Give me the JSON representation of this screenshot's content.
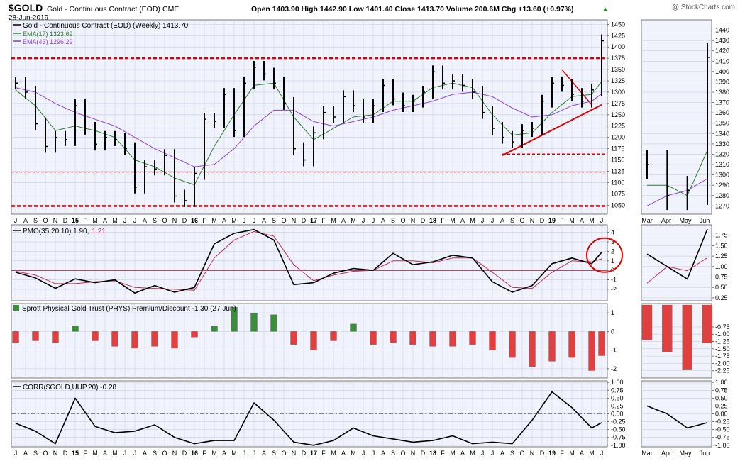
{
  "header": {
    "symbol": "$GOLD",
    "name": "Gold - Continuous Contract (EOD)",
    "exchange": "CME",
    "date": "28-Jun-2019",
    "quote": "Open 1403.90   High 1442.90   Low 1401.40   Close 1413.70   Volume 200.6M   Chg +13.60 (+0.97%)",
    "quote_arrow": "▲",
    "watermark": "@ StockCharts.com"
  },
  "colors": {
    "price": "#000000",
    "ema17": "#2e7d32",
    "ema43": "#8b3fd9",
    "resistance": "#e00000",
    "pmo_signal": "#c0285a",
    "premium_up": "#3c8c3c",
    "premium_down": "#e04040",
    "panel_bg": "#f0f3fc",
    "grid": "#c8cde0"
  },
  "chart_data": [
    {
      "panel": "price",
      "type": "line",
      "title": "Gold - Continuous Contract (EOD) (Weekly) 1413.70",
      "legend": [
        {
          "label": "Gold - Continuous Contract (EOD) (Weekly) 1413.70",
          "color": "#000000"
        },
        {
          "label": "EMA(17) 1323.69",
          "color": "#2e7d32"
        },
        {
          "label": "EMA(43) 1296.29",
          "color": "#8b3fd9"
        }
      ],
      "ylim": [
        1030,
        1460
      ],
      "yticks": [
        1050,
        1075,
        1100,
        1125,
        1150,
        1175,
        1200,
        1225,
        1250,
        1275,
        1300,
        1325,
        1350,
        1375,
        1400,
        1425,
        1450
      ],
      "x_month_labels": [
        "J",
        "A",
        "S",
        "O",
        "N",
        "D",
        "15",
        "F",
        "M",
        "A",
        "M",
        "J",
        "J",
        "A",
        "S",
        "O",
        "N",
        "D",
        "16",
        "F",
        "M",
        "A",
        "M",
        "J",
        "J",
        "A",
        "S",
        "O",
        "N",
        "D",
        "17",
        "F",
        "M",
        "A",
        "M",
        "J",
        "J",
        "A",
        "S",
        "O",
        "N",
        "D",
        "18",
        "F",
        "M",
        "A",
        "M",
        "J",
        "J",
        "A",
        "S",
        "O",
        "N",
        "D",
        "19",
        "F",
        "M",
        "A",
        "M",
        "J"
      ],
      "x_start": "2014-07",
      "x_end": "2019-06",
      "series": [
        {
          "name": "Gold - Continuous Contract (EOD) (Weekly)",
          "kind": "close",
          "x": [
            "2014-07",
            "2014-08",
            "2014-09",
            "2014-10",
            "2014-11",
            "2014-12",
            "2015-01",
            "2015-02",
            "2015-03",
            "2015-04",
            "2015-05",
            "2015-06",
            "2015-07",
            "2015-08",
            "2015-09",
            "2015-10",
            "2015-11",
            "2015-12",
            "2016-01",
            "2016-02",
            "2016-03",
            "2016-04",
            "2016-05",
            "2016-06",
            "2016-07",
            "2016-08",
            "2016-09",
            "2016-10",
            "2016-11",
            "2016-12",
            "2017-01",
            "2017-02",
            "2017-03",
            "2017-04",
            "2017-05",
            "2017-06",
            "2017-07",
            "2017-08",
            "2017-09",
            "2017-10",
            "2017-11",
            "2017-12",
            "2018-01",
            "2018-02",
            "2018-03",
            "2018-04",
            "2018-05",
            "2018-06",
            "2018-07",
            "2018-08",
            "2018-09",
            "2018-10",
            "2018-11",
            "2018-12",
            "2019-01",
            "2019-02",
            "2019-03",
            "2019-04",
            "2019-05",
            "2019-06"
          ],
          "values": [
            1320,
            1300,
            1230,
            1180,
            1200,
            1195,
            1270,
            1220,
            1185,
            1200,
            1195,
            1175,
            1090,
            1135,
            1130,
            1160,
            1070,
            1060,
            1120,
            1240,
            1235,
            1295,
            1215,
            1320,
            1355,
            1340,
            1320,
            1275,
            1175,
            1150,
            1210,
            1255,
            1245,
            1290,
            1270,
            1245,
            1270,
            1315,
            1285,
            1270,
            1280,
            1300,
            1345,
            1320,
            1325,
            1315,
            1300,
            1255,
            1220,
            1200,
            1190,
            1215,
            1220,
            1280,
            1320,
            1315,
            1295,
            1280,
            1305,
            1413.7
          ]
        },
        {
          "name": "EMA(17)",
          "kind": "line",
          "x": [
            "2014-07",
            "2014-09",
            "2014-11",
            "2015-01",
            "2015-03",
            "2015-05",
            "2015-07",
            "2015-09",
            "2015-11",
            "2016-01",
            "2016-03",
            "2016-05",
            "2016-07",
            "2016-09",
            "2016-11",
            "2017-01",
            "2017-03",
            "2017-05",
            "2017-07",
            "2017-09",
            "2017-11",
            "2018-01",
            "2018-03",
            "2018-05",
            "2018-07",
            "2018-09",
            "2018-11",
            "2019-01",
            "2019-03",
            "2019-05",
            "2019-06"
          ],
          "values": [
            1305,
            1270,
            1215,
            1225,
            1215,
            1200,
            1150,
            1135,
            1110,
            1095,
            1180,
            1250,
            1315,
            1320,
            1245,
            1195,
            1220,
            1245,
            1250,
            1280,
            1280,
            1310,
            1320,
            1310,
            1250,
            1205,
            1210,
            1255,
            1290,
            1295,
            1323.69
          ]
        },
        {
          "name": "EMA(43)",
          "kind": "line",
          "x": [
            "2014-07",
            "2014-09",
            "2014-11",
            "2015-01",
            "2015-03",
            "2015-05",
            "2015-07",
            "2015-09",
            "2015-11",
            "2016-01",
            "2016-03",
            "2016-05",
            "2016-07",
            "2016-09",
            "2016-11",
            "2017-01",
            "2017-03",
            "2017-05",
            "2017-07",
            "2017-09",
            "2017-11",
            "2018-01",
            "2018-03",
            "2018-05",
            "2018-07",
            "2018-09",
            "2018-11",
            "2019-01",
            "2019-03",
            "2019-05",
            "2019-06"
          ],
          "values": [
            1310,
            1300,
            1275,
            1255,
            1240,
            1225,
            1200,
            1175,
            1155,
            1135,
            1140,
            1175,
            1225,
            1260,
            1260,
            1235,
            1225,
            1235,
            1245,
            1260,
            1270,
            1280,
            1295,
            1300,
            1290,
            1265,
            1245,
            1250,
            1270,
            1280,
            1296.29
          ]
        }
      ],
      "annotations": {
        "resistance_levels": [
          1375,
          1123,
          1048
        ],
        "support_level_2018": 1163,
        "rising_trendline": [
          [
            "2018-08",
            1160
          ],
          [
            "2019-06",
            1272
          ]
        ],
        "pennant_top": [
          [
            "2019-02",
            1350
          ],
          [
            "2019-05",
            1272
          ]
        ]
      }
    },
    {
      "panel": "price-detail",
      "type": "line",
      "ylim": [
        1262,
        1450
      ],
      "yticks": [
        1270,
        1280,
        1290,
        1300,
        1310,
        1320,
        1330,
        1340,
        1350,
        1360,
        1370,
        1380,
        1390,
        1400,
        1410,
        1420,
        1430,
        1440
      ],
      "x_month_labels": [
        "Mar",
        "Apr",
        "May",
        "Jun"
      ],
      "series": [
        {
          "name": "Gold - Continuous Contract (EOD)",
          "kind": "close",
          "x": [
            "2019-03",
            "2019-04",
            "2019-05",
            "2019-06"
          ],
          "values": [
            1310,
            1280,
            1285,
            1413.7
          ]
        },
        {
          "name": "EMA(17)",
          "kind": "line",
          "x": [
            "2019-03",
            "2019-04",
            "2019-05",
            "2019-06"
          ],
          "values": [
            1290,
            1290,
            1280,
            1323.69
          ]
        },
        {
          "name": "EMA(43)",
          "kind": "line",
          "x": [
            "2019-03",
            "2019-04",
            "2019-05",
            "2019-06"
          ],
          "values": [
            1270,
            1280,
            1285,
            1296.29
          ]
        }
      ]
    },
    {
      "panel": "pmo",
      "type": "line",
      "title": "PMO(35,20,10) 1.90, 1.21",
      "label_main": "PMO(35,20,10) 1.90,",
      "label_signal": "1.21",
      "ylim": [
        -3.2,
        4.8
      ],
      "yticks": [
        -2,
        -1,
        0,
        1,
        2,
        3,
        4
      ],
      "zero_line": 0,
      "series": [
        {
          "name": "PMO",
          "x": [
            "2014-07",
            "2014-09",
            "2014-11",
            "2015-01",
            "2015-03",
            "2015-05",
            "2015-07",
            "2015-09",
            "2015-11",
            "2016-01",
            "2016-03",
            "2016-05",
            "2016-07",
            "2016-09",
            "2016-11",
            "2017-01",
            "2017-03",
            "2017-05",
            "2017-07",
            "2017-09",
            "2017-11",
            "2018-01",
            "2018-03",
            "2018-05",
            "2018-07",
            "2018-09",
            "2018-11",
            "2019-01",
            "2019-03",
            "2019-05",
            "2019-06"
          ],
          "values": [
            -0.2,
            -0.8,
            -1.9,
            -0.9,
            -1.3,
            -1.0,
            -2.4,
            -1.6,
            -2.3,
            -1.8,
            2.8,
            3.9,
            4.3,
            3.2,
            -1.5,
            -1.3,
            -0.3,
            0.2,
            0.0,
            1.8,
            0.6,
            0.9,
            1.6,
            1.3,
            -1.2,
            -2.3,
            -1.6,
            0.7,
            1.3,
            0.7,
            1.9
          ]
        },
        {
          "name": "Signal",
          "x": [
            "2014-07",
            "2014-09",
            "2014-11",
            "2015-01",
            "2015-03",
            "2015-05",
            "2015-07",
            "2015-09",
            "2015-11",
            "2016-01",
            "2016-03",
            "2016-05",
            "2016-07",
            "2016-09",
            "2016-11",
            "2017-01",
            "2017-03",
            "2017-05",
            "2017-07",
            "2017-09",
            "2017-11",
            "2018-01",
            "2018-03",
            "2018-05",
            "2018-07",
            "2018-09",
            "2018-11",
            "2019-01",
            "2019-03",
            "2019-05",
            "2019-06"
          ],
          "values": [
            -0.1,
            -0.5,
            -1.4,
            -1.4,
            -1.2,
            -1.1,
            -1.8,
            -1.9,
            -2.0,
            -2.1,
            1.3,
            3.2,
            4.1,
            3.6,
            0.6,
            -1.1,
            -0.5,
            -0.1,
            0.0,
            1.0,
            1.0,
            0.8,
            1.3,
            1.3,
            -0.2,
            -1.8,
            -1.9,
            -0.2,
            1.0,
            0.9,
            1.21
          ]
        }
      ]
    },
    {
      "panel": "pmo-detail",
      "type": "line",
      "ylim": [
        0.18,
        2.0
      ],
      "yticks": [
        0.25,
        0.5,
        0.75,
        1.0,
        1.25,
        1.5,
        1.75
      ],
      "series": [
        {
          "name": "PMO",
          "x": [
            "2019-03",
            "2019-04",
            "2019-05",
            "2019-06"
          ],
          "values": [
            1.3,
            1.0,
            0.7,
            1.9
          ]
        },
        {
          "name": "Signal",
          "x": [
            "2019-03",
            "2019-04",
            "2019-05",
            "2019-06"
          ],
          "values": [
            0.6,
            1.0,
            0.9,
            1.21
          ]
        }
      ]
    },
    {
      "panel": "premium",
      "type": "bar",
      "title": "Sprott Physical Gold Trust (PHYS) Premium/Discount -1.30 (27 Jun)",
      "ylim": [
        -2.5,
        1.5
      ],
      "yticks": [
        -2,
        -1,
        0,
        1
      ],
      "x": [
        "2014-07",
        "2014-09",
        "2014-11",
        "2015-01",
        "2015-03",
        "2015-05",
        "2015-07",
        "2015-09",
        "2015-11",
        "2016-01",
        "2016-03",
        "2016-05",
        "2016-07",
        "2016-09",
        "2016-11",
        "2017-01",
        "2017-03",
        "2017-05",
        "2017-07",
        "2017-09",
        "2017-11",
        "2018-01",
        "2018-03",
        "2018-05",
        "2018-07",
        "2018-09",
        "2018-11",
        "2019-01",
        "2019-03",
        "2019-05",
        "2019-06"
      ],
      "values": [
        -0.6,
        -0.5,
        -0.6,
        0.3,
        -0.5,
        -0.8,
        -0.9,
        -0.8,
        -0.9,
        -0.3,
        0.3,
        1.3,
        1.0,
        0.9,
        -0.7,
        -1.0,
        -0.5,
        0.4,
        -0.7,
        -0.6,
        -0.7,
        -0.8,
        -0.8,
        -0.7,
        -1.0,
        -1.4,
        -1.9,
        -1.6,
        -1.4,
        -2.1,
        -1.3
      ]
    },
    {
      "panel": "premium-detail",
      "type": "bar",
      "ylim": [
        -2.5,
        0.05
      ],
      "yticks": [
        -0.75,
        -1.0,
        -1.25,
        -1.5,
        -1.75,
        -2.0,
        -2.25
      ],
      "x": [
        "2019-03",
        "2019-04",
        "2019-05",
        "2019-06"
      ],
      "values": [
        -1.2,
        -1.6,
        -2.2,
        -1.3
      ]
    },
    {
      "panel": "corr",
      "type": "line",
      "title": "CORR($GOLD,UUP,20) -0.28",
      "ylim": [
        -1.05,
        1.05
      ],
      "yticks": [
        -1.0,
        -0.75,
        -0.5,
        -0.25,
        0.0,
        0.25,
        0.5,
        0.75,
        1.0
      ],
      "zero_line": 0,
      "series": [
        {
          "name": "CORR($GOLD,UUP,20)",
          "x": [
            "2014-07",
            "2014-09",
            "2014-11",
            "2015-01",
            "2015-03",
            "2015-05",
            "2015-07",
            "2015-09",
            "2015-11",
            "2016-01",
            "2016-03",
            "2016-05",
            "2016-07",
            "2016-09",
            "2016-11",
            "2017-01",
            "2017-03",
            "2017-05",
            "2017-07",
            "2017-09",
            "2017-11",
            "2018-01",
            "2018-03",
            "2018-05",
            "2018-07",
            "2018-09",
            "2018-11",
            "2019-01",
            "2019-03",
            "2019-05",
            "2019-06"
          ],
          "values": [
            -0.3,
            -0.55,
            -0.95,
            0.5,
            -0.4,
            -0.6,
            -0.55,
            -0.35,
            -0.75,
            -0.95,
            -0.85,
            -0.85,
            0.35,
            -0.2,
            -0.9,
            -1.0,
            -0.85,
            -0.45,
            -0.7,
            -0.8,
            -0.9,
            -0.85,
            -0.7,
            -0.95,
            -0.9,
            -0.95,
            -0.2,
            0.7,
            0.2,
            -0.45,
            -0.28
          ]
        }
      ]
    },
    {
      "panel": "corr-detail",
      "type": "line",
      "ylim": [
        -1.05,
        1.05
      ],
      "yticks": [
        -1.0,
        -0.75,
        -0.5,
        -0.25,
        0.0,
        0.25,
        0.5,
        0.75,
        1.0
      ],
      "series": [
        {
          "name": "CORR($GOLD,UUP,20)",
          "x": [
            "2019-03",
            "2019-04",
            "2019-05",
            "2019-06"
          ],
          "values": [
            0.25,
            0.0,
            -0.45,
            -0.28
          ]
        }
      ]
    }
  ]
}
